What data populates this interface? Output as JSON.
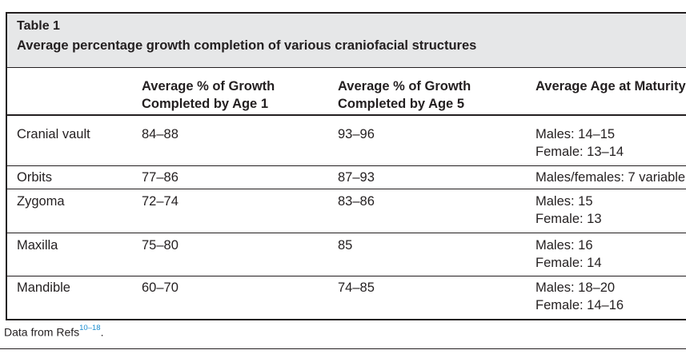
{
  "table": {
    "label": "Table 1",
    "title": "Average percentage growth completion of various craniofacial structures",
    "headers": [
      {
        "line1": "",
        "line2": ""
      },
      {
        "line1": "Average % of Growth",
        "line2": "Completed by Age 1"
      },
      {
        "line1": "Average % of Growth",
        "line2": "Completed by Age 5"
      },
      {
        "line1": "",
        "line2": "Average Age at Maturity"
      }
    ],
    "rows": [
      {
        "structure": "Cranial vault",
        "age1": "84–88",
        "age5": "93–96",
        "maturity_line1": "Males: 14–15",
        "maturity_line2": "Female: 13–14"
      },
      {
        "structure": "Orbits",
        "age1": "77–86",
        "age5": "87–93",
        "maturity_line1": "Males/females: 7 variable",
        "maturity_line2": ""
      },
      {
        "structure": "Zygoma",
        "age1": "72–74",
        "age5": "83–86",
        "maturity_line1": "Males: 15",
        "maturity_line2": "Female: 13"
      },
      {
        "structure": "Maxilla",
        "age1": "75–80",
        "age5": "85",
        "maturity_line1": "Males: 16",
        "maturity_line2": "Female: 14"
      },
      {
        "structure": "Mandible",
        "age1": "60–70",
        "age5": "74–85",
        "maturity_line1": "Males: 18–20",
        "maturity_line2": "Female: 14–16"
      }
    ]
  },
  "footnote": {
    "text": "Data from Refs",
    "refs": "10–18",
    "end": "."
  }
}
